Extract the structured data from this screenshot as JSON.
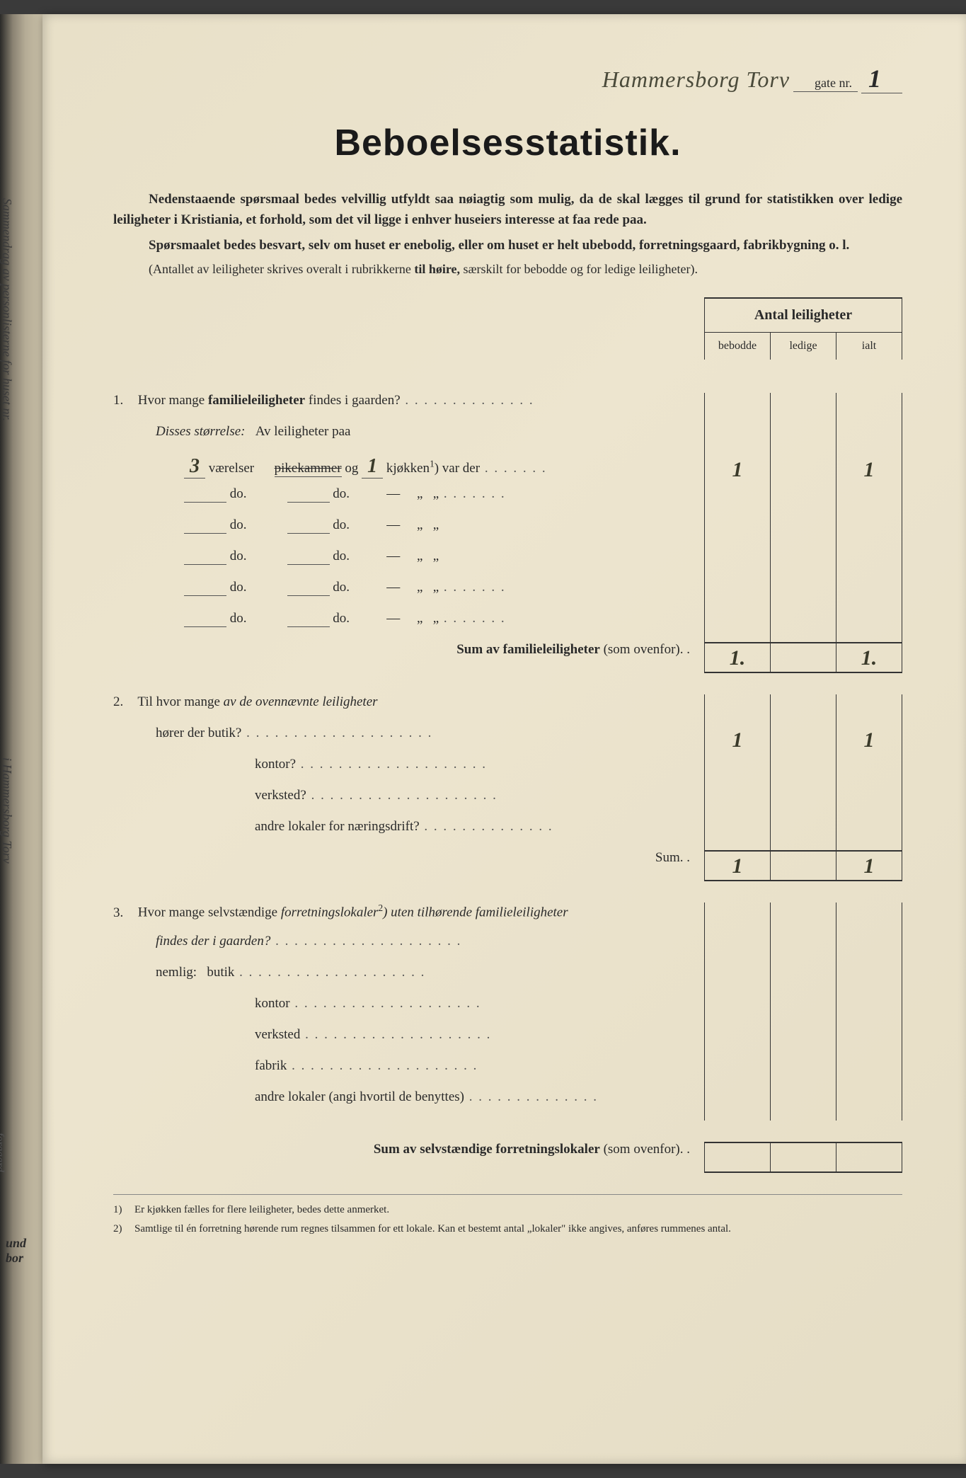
{
  "spine": {
    "text1": "Sammendrag av personlisterne for huset nr.",
    "text2": "i Hammersborg Torv",
    "label_forgaard": "forgaard",
    "label_bor": "und bor",
    "label_land": "land"
  },
  "header": {
    "street": "Hammersborg Torv",
    "gate_label": "gate nr.",
    "gate_nr": "1"
  },
  "title": "Beboelsesstatistik.",
  "intro": {
    "p1a": "Nedenstaaende spørsmaal bedes velvillig utfyldt saa nøiagtig som mulig, da de skal lægges til grund for statistikken over ledige leiligheter i Kristiania, et forhold, som det vil ligge i enhver huseiers interesse at faa rede paa.",
    "p2a": "Spørsmaalet bedes besvart, selv om huset er enebolig, eller om huset er helt ubebodd, forretningsgaard, fabrikbygning o. l.",
    "p3": "(Antallet av leiligheter skrives overalt i rubrikkerne ",
    "p3b": "til høire,",
    "p3c": " særskilt for bebodde og for ledige leiligheter)."
  },
  "cols": {
    "main": "Antal leiligheter",
    "c1": "bebodde",
    "c2": "ledige",
    "c3": "ialt"
  },
  "q1": {
    "num": "1.",
    "text": "Hvor mange ",
    "bold": "familieleiligheter",
    "text2": " findes i gaarden?",
    "sub_label": "Disses størrelse:",
    "sub_text": "Av leiligheter paa",
    "rooms_hw": "3",
    "vaerelser": "værelser",
    "pikekammer": "pikekammer",
    "og": "og",
    "kjokken_hw": "1",
    "kjokken": "kjøkken",
    "sup1": "1",
    "varder": ") var der",
    "do": "do.",
    "dash": "—",
    "ditto": "„",
    "sum_label": "Sum av familieleiligheter",
    "sum_suffix": " (som ovenfor). .",
    "val_bebodde": "1",
    "val_ialt": "1",
    "sum_bebodde": "1.",
    "sum_ialt": "1."
  },
  "q2": {
    "num": "2.",
    "text": "Til hvor mange ",
    "italic": "av de ovennævnte leiligheter",
    "line2": "hører der butik?",
    "kontor": "kontor?",
    "verksted": "verksted?",
    "andre": "andre lokaler for næringsdrift?",
    "sum": "Sum. .",
    "val_bebodde": "1",
    "val_ialt": "1",
    "sum_bebodde": "1",
    "sum_ialt": "1"
  },
  "q3": {
    "num": "3.",
    "text": "Hvor mange selvstændige ",
    "italic": "forretningslokaler",
    "sup2": "2",
    "italic2": ") uten tilhørende familieleiligheter",
    "line2": "findes der i gaarden?",
    "nemlig": "nemlig:",
    "butik": "butik",
    "kontor": "kontor",
    "verksted": "verksted",
    "fabrik": "fabrik",
    "andre": "andre lokaler (angi hvortil de benyttes)",
    "sum_label": "Sum av selvstændige forretningslokaler",
    "sum_suffix": " (som ovenfor). ."
  },
  "footnotes": {
    "n1": "1)",
    "t1": "Er kjøkken fælles for flere leiligheter, bedes dette anmerket.",
    "n2": "2)",
    "t2": "Samtlige til én forretning hørende rum regnes tilsammen for ett lokale.  Kan et bestemt antal „lokaler\" ikke angives, anføres rummenes antal."
  }
}
